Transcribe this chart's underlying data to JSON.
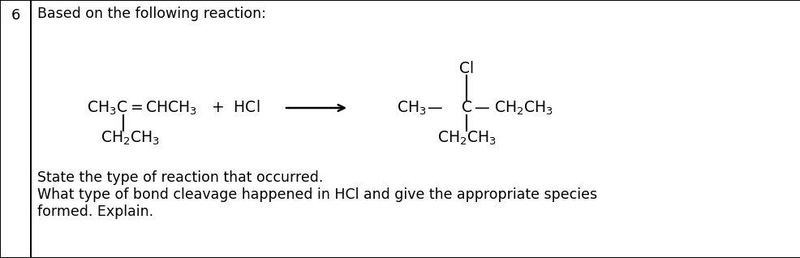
{
  "bg_color": "#ffffff",
  "border_color": "#000000",
  "left_number": "6",
  "header_text": "Based on the following reaction:",
  "line1": "State the type of reaction that occurred.",
  "line2": "What type of bond cleavage happened in HCl and give the appropriate species",
  "line3": "formed. Explain.",
  "fontsize_chem": 13.5,
  "fontsize_text": 12.5,
  "fontsize_number": 13,
  "fig_width": 9.87,
  "fig_height": 3.18,
  "dpi": 100
}
